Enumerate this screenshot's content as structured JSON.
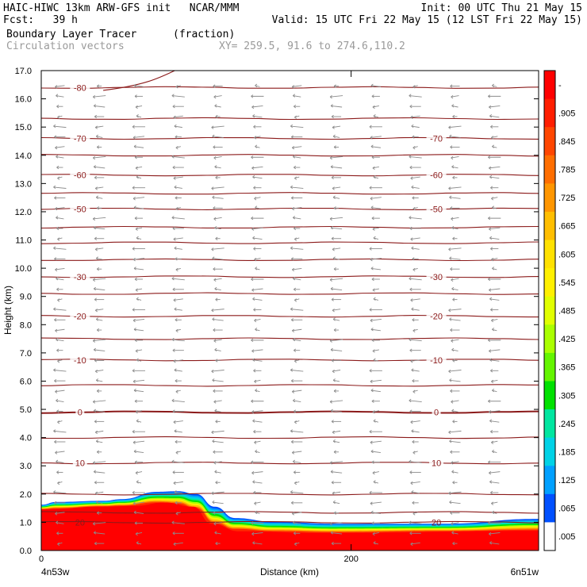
{
  "header": {
    "line1_left": "HAIC-HIWC 13km ARW-GFS init   NCAR/MMM",
    "line1_right": "Init: 00 UTC Thu 21 May 15",
    "line2_left": "Fcst:   39 h",
    "line2_right": "Valid: 15 UTC Fri 22 May 15 (12 LST Fri 22 May 15)",
    "line3_field": "Boundary Layer Tracer",
    "line3_units": "(fraction)",
    "line4_field": "Circulation vectors",
    "line4_xy": "XY= 259.5, 91.6 to 274.6,110.2"
  },
  "colors": {
    "contour": "#8b1a1a",
    "vector": "#8c8c8c"
  },
  "chart_data": {
    "type": "heatmap",
    "xlabel": "Distance (km)",
    "ylabel": "Height (km)",
    "xlim": [
      0,
      321
    ],
    "ylim": [
      0,
      17
    ],
    "x_ticks": [
      "0",
      "200"
    ],
    "x_tick_values": [
      0,
      200
    ],
    "y_ticks": [
      "0.0",
      "1.0",
      "2.0",
      "3.0",
      "4.0",
      "5.0",
      "6.0",
      "7.0",
      "8.0",
      "9.0",
      "10.0",
      "11.0",
      "12.0",
      "13.0",
      "14.0",
      "15.0",
      "16.0",
      "17.0"
    ],
    "corner_left": "4n53w",
    "corner_right": "6n51w",
    "colorbar": {
      "labels": [
        "-",
        ".905",
        ".845",
        ".785",
        ".725",
        ".665",
        ".605",
        ".545",
        ".485",
        ".425",
        ".365",
        ".305",
        ".245",
        ".185",
        ".125",
        ".065",
        ".005"
      ],
      "colors": [
        "#ff0000",
        "#ff1e00",
        "#ff4600",
        "#ff6e00",
        "#ff9600",
        "#ffbe00",
        "#ffe100",
        "#fff000",
        "#e1ff00",
        "#aaff00",
        "#64f500",
        "#00e100",
        "#00e6a0",
        "#00d2e6",
        "#00a0ff",
        "#0050ff",
        "#ffffff"
      ]
    },
    "tracer_top_km": [
      {
        "x": 0,
        "top": 1.62
      },
      {
        "x": 10,
        "top": 1.72
      },
      {
        "x": 40,
        "top": 1.76
      },
      {
        "x": 52,
        "top": 1.82
      },
      {
        "x": 75,
        "top": 2.08
      },
      {
        "x": 88,
        "top": 2.1
      },
      {
        "x": 100,
        "top": 2.0
      },
      {
        "x": 112,
        "top": 1.55
      },
      {
        "x": 125,
        "top": 1.15
      },
      {
        "x": 150,
        "top": 1.02
      },
      {
        "x": 190,
        "top": 0.95
      },
      {
        "x": 260,
        "top": 0.95
      },
      {
        "x": 321,
        "top": 1.12
      }
    ],
    "red_core_top_km": [
      {
        "x": 0,
        "top": 1.45
      },
      {
        "x": 40,
        "top": 1.55
      },
      {
        "x": 60,
        "top": 1.58
      },
      {
        "x": 80,
        "top": 1.7
      },
      {
        "x": 98,
        "top": 1.55
      },
      {
        "x": 110,
        "top": 0.95
      },
      {
        "x": 128,
        "top": 0.68
      },
      {
        "x": 180,
        "top": 0.62
      },
      {
        "x": 321,
        "top": 0.7
      }
    ],
    "isotherms": [
      {
        "label": "-80",
        "height": 16.4
      },
      {
        "label": "-70",
        "height": 14.6
      },
      {
        "label": "-60",
        "height": 13.3
      },
      {
        "label": "-50",
        "height": 12.1
      },
      {
        "label": "-30",
        "height": 9.7
      },
      {
        "label": "-20",
        "height": 8.3
      },
      {
        "label": "-10",
        "height": 6.75
      },
      {
        "label": "0",
        "height": 4.9
      },
      {
        "label": "10",
        "height": 3.1
      },
      {
        "label": "20",
        "height": 1.0
      }
    ],
    "unlabeled_contour_heights": [
      15.3,
      14.0,
      12.65,
      11.45,
      10.9,
      10.3,
      9.1,
      7.5,
      5.85,
      4.0,
      2.0,
      1.35
    ]
  }
}
